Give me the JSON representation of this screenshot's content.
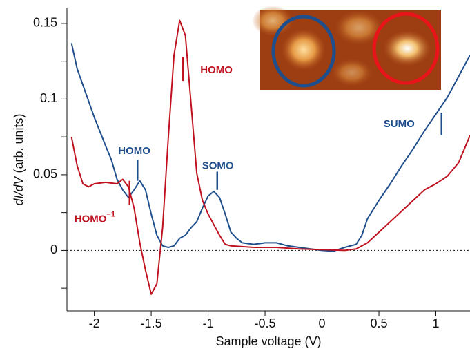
{
  "chart_data": {
    "type": "line",
    "xlabel": "Sample voltage (V)",
    "ylabel_italic": "dI/dV",
    "ylabel_rest": "(arb. units)",
    "xlim": [
      -2.24,
      1.3
    ],
    "ylim": [
      -0.04,
      0.16
    ],
    "xticks": [
      -2,
      -1.5,
      -1,
      -0.5,
      0,
      0.5,
      1
    ],
    "yticks": [
      0,
      0.05,
      0.1,
      0.15
    ],
    "yminor_ticks": [
      -0.025,
      0.025,
      0.075,
      0.125
    ],
    "zero_line": true,
    "series": [
      {
        "color": "#1f4e8c",
        "x": [
          -2.2,
          -2.15,
          -2.0,
          -1.9,
          -1.85,
          -1.8,
          -1.75,
          -1.7,
          -1.65,
          -1.6,
          -1.55,
          -1.5,
          -1.45,
          -1.4,
          -1.35,
          -1.3,
          -1.25,
          -1.2,
          -1.15,
          -1.1,
          -1.05,
          -1.0,
          -0.95,
          -0.9,
          -0.85,
          -0.8,
          -0.75,
          -0.7,
          -0.6,
          -0.5,
          -0.4,
          -0.3,
          -0.2,
          -0.1,
          0,
          0.1,
          0.2,
          0.3,
          0.35,
          0.4,
          0.5,
          0.6,
          0.7,
          0.8,
          0.9,
          1.0,
          1.1,
          1.2,
          1.3
        ],
        "values": [
          0.137,
          0.12,
          0.088,
          0.069,
          0.06,
          0.047,
          0.04,
          0.035,
          0.04,
          0.046,
          0.04,
          0.024,
          0.01,
          0.003,
          0.002,
          0.003,
          0.008,
          0.01,
          0.015,
          0.019,
          0.028,
          0.036,
          0.039,
          0.035,
          0.024,
          0.012,
          0.008,
          0.005,
          0.004,
          0.005,
          0.005,
          0.003,
          0.002,
          0.001,
          0,
          -0.0005,
          0.002,
          0.004,
          0.01,
          0.021,
          0.033,
          0.044,
          0.056,
          0.067,
          0.079,
          0.09,
          0.101,
          0.115,
          0.129
        ]
      },
      {
        "color": "#c0111f",
        "x": [
          -2.2,
          -2.15,
          -2.1,
          -2.05,
          -2.0,
          -1.9,
          -1.8,
          -1.75,
          -1.7,
          -1.65,
          -1.6,
          -1.55,
          -1.5,
          -1.45,
          -1.4,
          -1.35,
          -1.3,
          -1.25,
          -1.2,
          -1.15,
          -1.1,
          -1.05,
          -1.0,
          -0.95,
          -0.9,
          -0.85,
          -0.8,
          -0.6,
          -0.4,
          -0.2,
          0,
          0.2,
          0.3,
          0.4,
          0.5,
          0.6,
          0.7,
          0.8,
          0.9,
          1.0,
          1.1,
          1.2,
          1.3
        ],
        "values": [
          0.075,
          0.056,
          0.044,
          0.042,
          0.044,
          0.045,
          0.044,
          0.047,
          0.042,
          0.028,
          0.005,
          -0.013,
          -0.029,
          -0.022,
          0.015,
          0.074,
          0.129,
          0.152,
          0.142,
          0.097,
          0.051,
          0.033,
          0.024,
          0.017,
          0.01,
          0.004,
          0.003,
          0.002,
          0.002,
          0.001,
          0.0005,
          0,
          0.001,
          0.005,
          0.012,
          0.019,
          0.026,
          0.033,
          0.04,
          0.044,
          0.049,
          0.058,
          0.076
        ]
      }
    ],
    "annotations": [
      {
        "text": "HOMO",
        "color": "#c0111f",
        "x": -1.22,
        "y": [
          0.128,
          0.112
        ]
      },
      {
        "text": "HOMO",
        "superscript": "−1",
        "color": "#c0111f",
        "x": -1.69,
        "y": [
          0.046,
          0.03
        ]
      },
      {
        "text": "HOMO",
        "color": "#1f4e8c",
        "x": -1.62,
        "y": [
          0.06,
          0.046
        ]
      },
      {
        "text": "SOMO",
        "color": "#1f4e8c",
        "x": -0.92,
        "y": [
          0.052,
          0.04
        ]
      },
      {
        "text": "SUMO",
        "color": "#1f4e8c",
        "x": 1.05,
        "y": [
          0.091,
          0.076
        ]
      }
    ]
  }
}
